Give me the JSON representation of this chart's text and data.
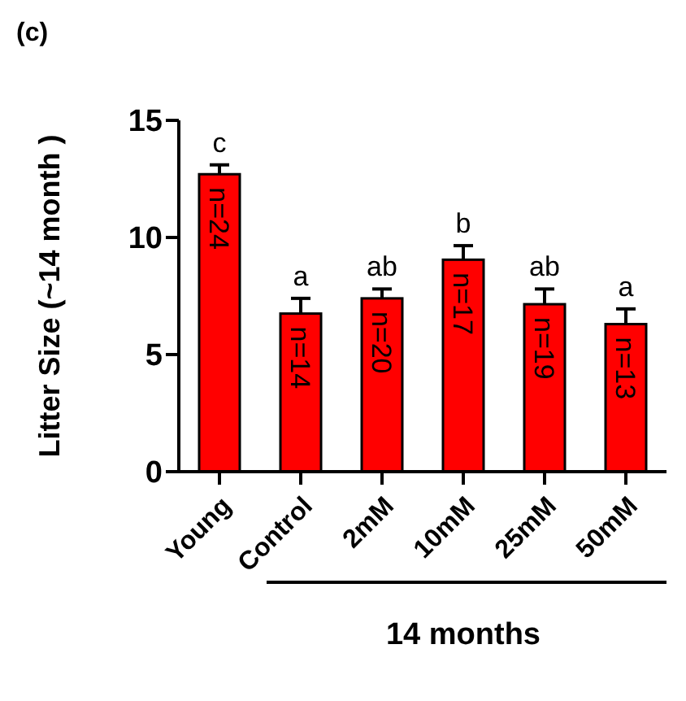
{
  "chart_data": {
    "type": "bar",
    "title": "(c)",
    "ylabel": "Litter Size (~14 month )",
    "xlabel": "14 months",
    "categories": [
      "Young",
      "Control",
      "2mM",
      "10mM",
      "25mM",
      "50mM"
    ],
    "values": [
      12.7,
      6.75,
      7.4,
      9.05,
      7.15,
      6.3
    ],
    "errors": [
      0.4,
      0.65,
      0.4,
      0.6,
      0.65,
      0.65
    ],
    "color": "#ff0000",
    "ylim": [
      0,
      15
    ],
    "yticks": [
      0,
      5,
      10,
      15
    ],
    "grid": false,
    "legend": false,
    "annotations": [
      {
        "text": "c",
        "x": "Young",
        "y": 13.1
      },
      {
        "text": "a",
        "x": "Control",
        "y": 7.4
      },
      {
        "text": "ab",
        "x": "2mM",
        "y": 7.8
      },
      {
        "text": "b",
        "x": "10mM",
        "y": 9.65
      },
      {
        "text": "ab",
        "x": "25mM",
        "y": 7.8
      },
      {
        "text": "a",
        "x": "50mM",
        "y": 6.95
      },
      "n=24",
      "n=14",
      "n=20",
      "n=17",
      "n=19",
      "n=13"
    ]
  }
}
